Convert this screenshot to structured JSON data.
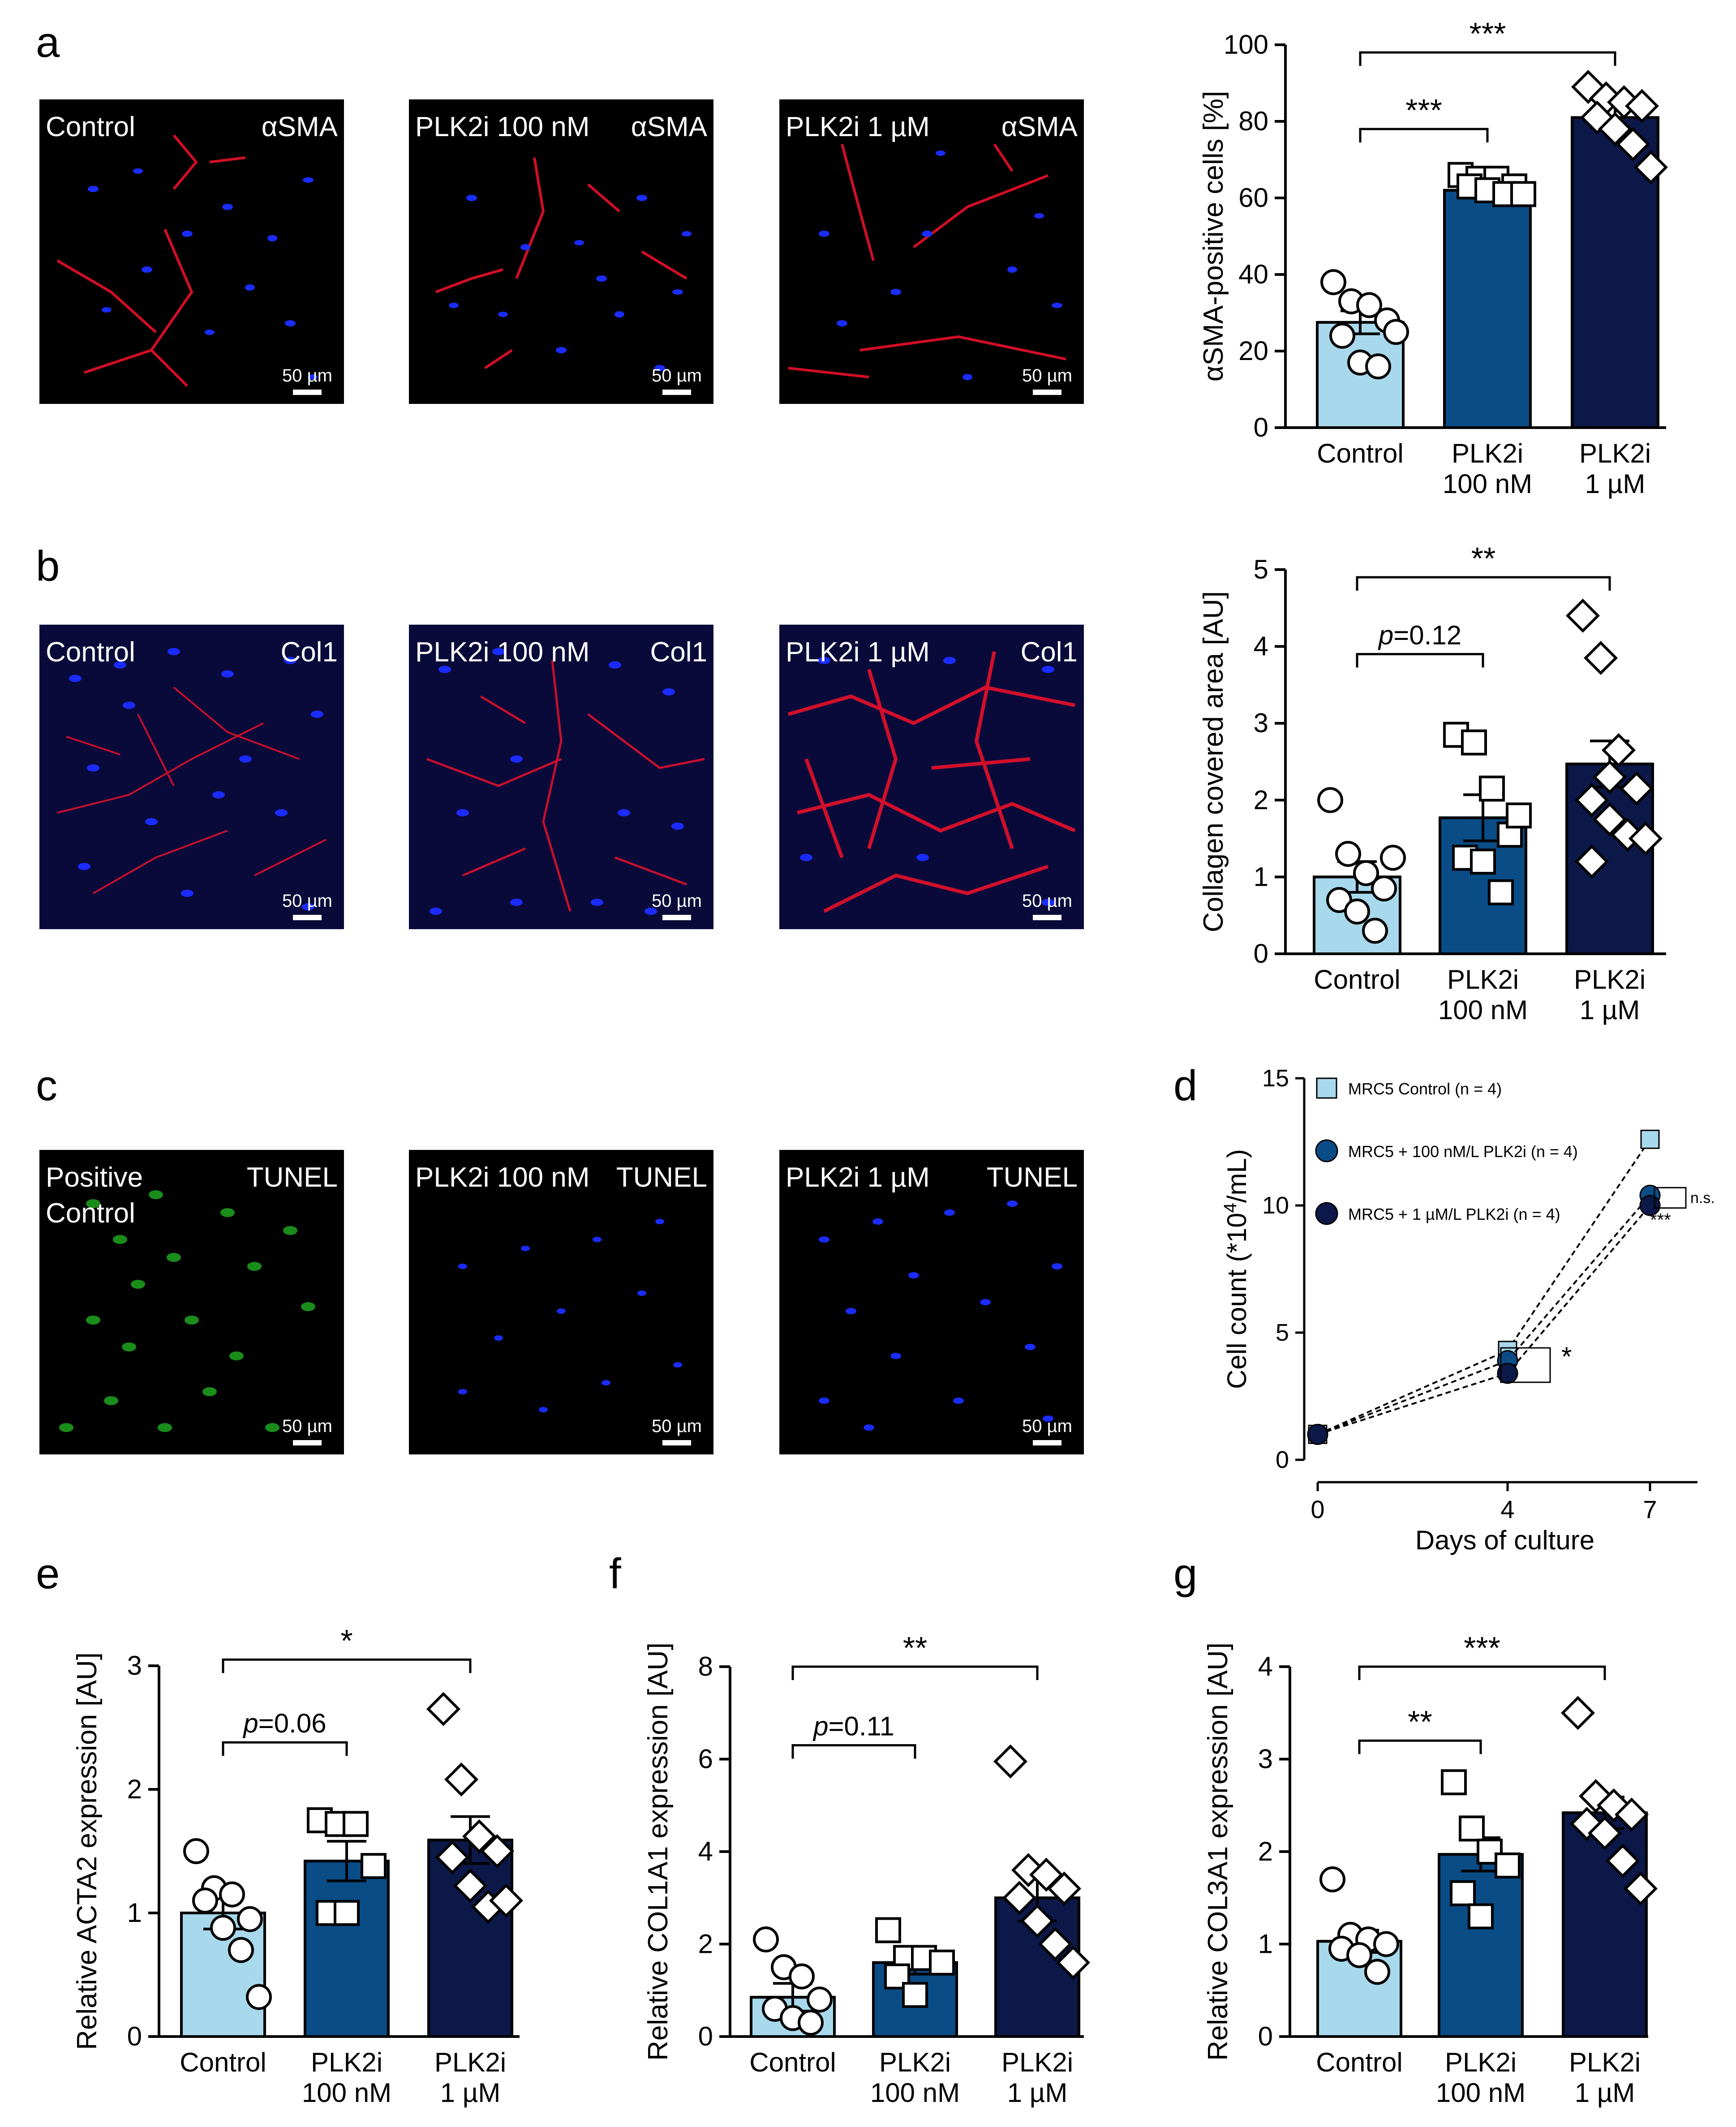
{
  "panel_letters": {
    "a": "a",
    "b": "b",
    "c": "c",
    "d": "d",
    "e": "e",
    "f": "f",
    "g": "g"
  },
  "scale_bar": "50 µm",
  "micrographs": {
    "a": [
      {
        "left": "Control",
        "right": "αSMA"
      },
      {
        "left": "PLK2i 100 nM",
        "right": "αSMA"
      },
      {
        "left": "PLK2i 1 µM",
        "right": "αSMA"
      }
    ],
    "b": [
      {
        "left": "Control",
        "right": "Col1"
      },
      {
        "left": "PLK2i 100 nM",
        "right": "Col1"
      },
      {
        "left": "PLK2i 1 µM",
        "right": "Col1"
      }
    ],
    "c": [
      {
        "left": "Positive",
        "left2": "Control",
        "right": "TUNEL"
      },
      {
        "left": "PLK2i 100 nM",
        "right": "TUNEL"
      },
      {
        "left": "PLK2i 1 µM",
        "right": "TUNEL"
      }
    ]
  },
  "colors": {
    "control": "#a8d8ec",
    "nm100": "#0a4c86",
    "um1": "#0b1848",
    "red": "#e8102a",
    "blue": "#1a2cff",
    "green": "#1ea51e"
  },
  "chart_data": [
    {
      "id": "a",
      "type": "bar",
      "categories": [
        "Control",
        "PLK2i|100 nM",
        "PLK2i|1 µM"
      ],
      "values": [
        27.5,
        62,
        81
      ],
      "sem": [
        3,
        1.5,
        3
      ],
      "points": [
        [
          38,
          33,
          32,
          28,
          24,
          17,
          16,
          25
        ],
        [
          66,
          65,
          65,
          63,
          63,
          62,
          61,
          61
        ],
        [
          89,
          86,
          85,
          84,
          81,
          78,
          74,
          68
        ]
      ],
      "markers": [
        "circle",
        "square",
        "diamond"
      ],
      "ylabel": "αSMA-positive cells [%]",
      "ylim": [
        0,
        100
      ],
      "yticks": [
        0,
        20,
        40,
        60,
        80,
        100
      ],
      "annotations": [
        {
          "from": 0,
          "to": 1,
          "text": "***",
          "y": 78
        },
        {
          "from": 0,
          "to": 2,
          "text": "***",
          "y": 98
        }
      ]
    },
    {
      "id": "b",
      "type": "bar",
      "categories": [
        "Control",
        "PLK2i|100 nM",
        "PLK2i|1 µM"
      ],
      "values": [
        1.0,
        1.77,
        2.47
      ],
      "sem": [
        0.2,
        0.3,
        0.3
      ],
      "points": [
        [
          2.0,
          1.3,
          1.05,
          0.85,
          0.7,
          0.55,
          0.3,
          1.25
        ],
        [
          2.85,
          2.75,
          2.15,
          1.55,
          1.25,
          1.2,
          0.8,
          1.8
        ],
        [
          4.4,
          3.85,
          2.65,
          2.15,
          2.0,
          1.75,
          1.55,
          1.5,
          1.2,
          2.3
        ]
      ],
      "markers": [
        "circle",
        "square",
        "diamond"
      ],
      "ylabel": "Collagen covered area [AU]",
      "ylim": [
        0,
        5
      ],
      "yticks": [
        0,
        1,
        2,
        3,
        4,
        5
      ],
      "annotations": [
        {
          "from": 0,
          "to": 1,
          "text": "p=0.12",
          "y": 3.9
        },
        {
          "from": 0,
          "to": 2,
          "text": "**",
          "y": 4.9
        }
      ]
    },
    {
      "id": "d",
      "type": "line",
      "x": [
        0,
        4,
        7
      ],
      "series": [
        {
          "name": "MRC5  Control",
          "nlabel": "(n = 4)",
          "values": [
            1.0,
            4.3,
            12.6
          ],
          "marker": "square"
        },
        {
          "name": "MRC5 + 100 nM/L PLK2i",
          "nlabel": "(n = 4)",
          "values": [
            1.0,
            3.9,
            10.4
          ],
          "marker": "circle"
        },
        {
          "name": "MRC5 + 1 µM/L PLK2i",
          "nlabel": "(n = 4)",
          "values": [
            1.0,
            3.4,
            10.0
          ],
          "marker": "circle"
        }
      ],
      "xlabel": "Days of culture",
      "ylabel": "Cell count (*10",
      "ylabel_sup": "4",
      "ylabel_tail": "/mL)",
      "xlim": [
        0,
        8
      ],
      "ylim": [
        0,
        15
      ],
      "xticks": [
        0,
        4,
        7
      ],
      "yticks": [
        0,
        5,
        10,
        15
      ],
      "annotations": {
        "day4": "*",
        "day7_ns": "n.s.",
        "day7": "***"
      }
    },
    {
      "id": "e",
      "type": "bar",
      "categories": [
        "Control",
        "PLK2i|100 nM",
        "PLK2i|1 µM"
      ],
      "values": [
        1.0,
        1.42,
        1.59
      ],
      "sem": [
        0.13,
        0.16,
        0.19
      ],
      "points": [
        [
          1.5,
          1.2,
          1.15,
          0.95,
          1.1,
          0.88,
          0.7,
          0.32
        ],
        [
          1.75,
          1.72,
          1.72,
          1.38,
          1.0,
          1.0
        ],
        [
          2.65,
          2.08,
          1.62,
          1.5,
          1.45,
          1.22,
          1.05,
          1.1
        ]
      ],
      "markers": [
        "circle",
        "square",
        "diamond"
      ],
      "ylabel": "Relative ACTA2 expression [AU]",
      "ylim": [
        0,
        3
      ],
      "yticks": [
        0,
        1,
        2,
        3
      ],
      "annotations": [
        {
          "from": 0,
          "to": 1,
          "text": "p=0.06",
          "y": 2.38
        },
        {
          "from": 0,
          "to": 2,
          "text": "*",
          "y": 3.05
        }
      ]
    },
    {
      "id": "f",
      "type": "bar",
      "categories": [
        "Control",
        "PLK2i|100 nM",
        "PLK2i|1 µM"
      ],
      "values": [
        0.85,
        1.6,
        3.0
      ],
      "sem": [
        0.3,
        0.25,
        0.5
      ],
      "points": [
        [
          2.1,
          1.5,
          1.3,
          0.8,
          0.6,
          0.4,
          0.3
        ],
        [
          2.3,
          1.7,
          1.7,
          1.6,
          1.3,
          0.9
        ],
        [
          5.95,
          3.6,
          3.5,
          3.2,
          3.0,
          2.5,
          2.0,
          1.6
        ]
      ],
      "markers": [
        "circle",
        "square",
        "diamond"
      ],
      "ylabel": "Relative COL1A1 expression [AU]",
      "ylim": [
        0,
        8
      ],
      "yticks": [
        0,
        2,
        4,
        6,
        8
      ],
      "annotations": [
        {
          "from": 0,
          "to": 1,
          "text": "p=0.11",
          "y": 6.3
        },
        {
          "from": 0,
          "to": 2,
          "text": "**",
          "y": 8.0
        }
      ]
    },
    {
      "id": "g",
      "type": "bar",
      "categories": [
        "Control",
        "PLK2i|100 nM",
        "PLK2i|1 µM"
      ],
      "values": [
        1.03,
        1.97,
        2.42
      ],
      "sem": [
        0.12,
        0.18,
        0.17
      ],
      "points": [
        [
          1.7,
          1.1,
          1.05,
          1.0,
          0.95,
          0.88,
          0.7
        ],
        [
          2.75,
          2.25,
          2.0,
          1.85,
          1.55,
          1.3
        ],
        [
          3.5,
          2.6,
          2.5,
          2.4,
          2.3,
          2.2,
          1.9,
          1.6
        ]
      ],
      "markers": [
        "circle",
        "square",
        "diamond"
      ],
      "ylabel": "Relative COL3A1 expression [AU]",
      "ylim": [
        0,
        4
      ],
      "yticks": [
        0,
        1,
        2,
        3,
        4
      ],
      "annotations": [
        {
          "from": 0,
          "to": 1,
          "text": "**",
          "y": 3.2
        },
        {
          "from": 0,
          "to": 2,
          "text": "***",
          "y": 4.0
        }
      ]
    }
  ]
}
